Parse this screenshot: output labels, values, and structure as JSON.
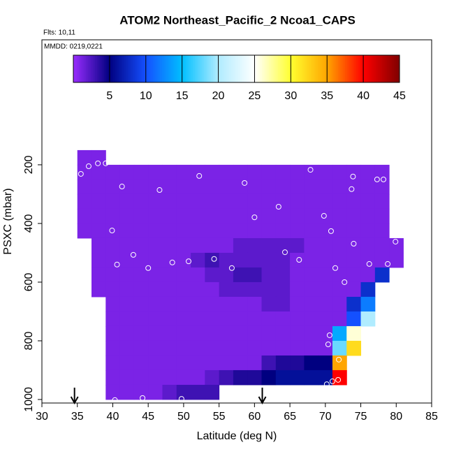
{
  "chart_data": {
    "type": "heatmap",
    "title": "ATOM2 Northeast_Pacific_2 Ncoa1_CAPS",
    "subtitle": "Flts: 10,11",
    "annotation": "MMDD: 0219,0221",
    "x_label": "Latitude (deg N)",
    "y_label": "PSXC (mbar)",
    "xlim": [
      30,
      85
    ],
    "xticks": [
      30,
      35,
      40,
      45,
      50,
      55,
      60,
      65,
      70,
      75,
      80,
      85
    ],
    "ylim": [
      1012,
      -226
    ],
    "yticks": [
      200,
      400,
      600,
      800,
      1000
    ],
    "x_edges": [
      35,
      37,
      39,
      41,
      43,
      45,
      47,
      49,
      51,
      53,
      55,
      57,
      59,
      61,
      63,
      65,
      67,
      69,
      71,
      73,
      75,
      77,
      79,
      81
    ],
    "y_edges": [
      150,
      200,
      250,
      300,
      350,
      400,
      450,
      500,
      550,
      600,
      650,
      700,
      750,
      800,
      850,
      900,
      950,
      1000
    ],
    "z": [
      [
        1,
        1,
        null,
        null,
        null,
        null,
        null,
        null,
        null,
        null,
        null,
        null,
        null,
        null,
        null,
        null,
        null,
        null,
        null,
        null,
        null,
        null,
        null
      ],
      [
        1,
        1,
        1,
        1,
        1,
        1,
        1,
        1,
        1,
        1,
        1,
        1,
        1,
        1,
        1,
        1,
        1,
        1,
        1,
        1,
        1,
        1,
        null
      ],
      [
        1,
        1,
        1,
        1,
        1,
        1,
        1,
        1,
        1,
        1,
        1,
        1,
        1,
        1,
        1,
        1,
        1,
        1,
        1,
        1,
        1,
        1,
        null
      ],
      [
        1,
        1,
        1,
        1,
        1,
        1,
        1,
        1,
        1,
        1,
        1,
        1,
        1,
        1,
        1,
        1,
        1,
        1,
        1,
        1,
        1,
        1,
        null
      ],
      [
        1,
        1,
        1,
        1,
        1,
        1,
        1,
        1,
        1,
        1,
        1,
        1,
        1,
        1,
        1,
        1,
        1,
        1,
        1,
        1,
        1,
        1,
        null
      ],
      [
        1,
        1,
        1,
        1,
        1,
        1,
        1,
        1,
        1,
        1,
        1,
        1,
        1,
        1,
        1,
        1,
        1,
        1,
        1,
        1,
        1,
        1,
        null
      ],
      [
        null,
        1,
        1,
        1,
        1,
        1,
        1,
        1,
        1,
        1,
        1,
        2,
        2,
        2,
        2,
        2,
        1,
        1,
        1,
        1,
        1,
        1,
        1
      ],
      [
        null,
        1,
        1,
        1,
        1,
        1,
        1,
        1,
        2,
        3,
        2,
        2,
        2,
        2,
        2,
        1,
        1,
        1,
        1,
        1,
        1,
        1,
        1
      ],
      [
        null,
        1,
        1,
        1,
        1,
        1,
        1,
        1,
        1,
        2,
        2,
        3,
        3,
        2,
        2,
        1,
        1,
        1,
        1,
        1,
        1,
        8,
        null
      ],
      [
        null,
        1,
        1,
        1,
        1,
        1,
        1,
        1,
        1,
        1,
        2,
        2,
        2,
        2,
        2,
        1,
        1,
        1,
        1,
        1,
        8,
        null,
        null
      ],
      [
        null,
        null,
        1,
        1,
        1,
        1,
        1,
        1,
        1,
        1,
        1,
        1,
        1,
        2,
        2,
        1,
        1,
        1,
        1,
        8,
        12,
        null,
        null
      ],
      [
        null,
        null,
        1,
        1,
        1,
        1,
        1,
        1,
        1,
        1,
        1,
        1,
        1,
        1,
        1,
        1,
        1,
        1,
        1,
        10,
        20,
        null,
        null
      ],
      [
        null,
        null,
        1,
        1,
        1,
        1,
        1,
        1,
        1,
        1,
        1,
        1,
        1,
        1,
        1,
        1,
        1,
        1,
        14,
        26,
        null,
        null,
        null
      ],
      [
        null,
        null,
        1,
        1,
        1,
        1,
        1,
        1,
        1,
        1,
        1,
        1,
        1,
        1,
        1,
        1,
        1,
        1,
        18,
        32,
        null,
        null,
        null
      ],
      [
        null,
        null,
        1,
        1,
        1,
        1,
        1,
        1,
        1,
        1,
        1,
        1,
        1,
        3,
        4,
        4,
        5,
        5,
        35,
        null,
        null,
        null,
        null
      ],
      [
        null,
        null,
        1,
        1,
        1,
        1,
        1,
        1,
        1,
        2,
        3,
        4,
        4,
        5,
        6,
        6,
        6,
        6,
        40,
        null,
        null,
        null,
        null
      ],
      [
        null,
        null,
        1,
        1,
        1,
        1,
        2,
        3,
        3,
        3,
        null,
        null,
        null,
        null,
        null,
        null,
        null,
        null,
        null,
        null,
        null,
        null,
        null
      ]
    ],
    "points": {
      "color": "#ffffff",
      "x": [
        35.5,
        36.6,
        37.9,
        39.0,
        41.3,
        46.6,
        52.2,
        58.6,
        67.9,
        73.9,
        73.7,
        77.3,
        78.2,
        63.4,
        60.0,
        69.8,
        39.9,
        70.8,
        79.9,
        42.9,
        40.6,
        45.0,
        48.4,
        50.7,
        54.3,
        56.8,
        64.3,
        66.3,
        71.4,
        74.0,
        76.2,
        78.8,
        72.7,
        70.6,
        70.4,
        71.9,
        70.2,
        71.0,
        71.8,
        40.3,
        44.2,
        49.7,
        55.8
      ],
      "y": [
        231,
        205,
        195,
        195,
        274,
        286,
        238,
        262,
        217,
        240,
        283,
        250,
        250,
        343,
        379,
        374,
        424,
        426,
        462,
        507,
        540,
        552,
        533,
        529,
        521,
        552,
        498,
        524,
        552,
        469,
        538,
        538,
        600,
        781,
        812,
        864,
        948,
        938,
        933,
        1002,
        995,
        998,
        990
      ]
    },
    "flight_markers_x": [
      34.6,
      61.1
    ],
    "clim": [
      0,
      45
    ],
    "cticks": [
      5,
      10,
      15,
      20,
      25,
      30,
      35,
      40,
      45
    ],
    "colormap": [
      {
        "value": 0,
        "color": "#9a2cff"
      },
      {
        "value": 5,
        "color": "#000080"
      },
      {
        "value": 10,
        "color": "#1450ff"
      },
      {
        "value": 15,
        "color": "#00bfff"
      },
      {
        "value": 20,
        "color": "#b0ecff"
      },
      {
        "value": 25,
        "color": "#ffffff"
      },
      {
        "value": 30,
        "color": "#ffff30"
      },
      {
        "value": 35,
        "color": "#ffa500"
      },
      {
        "value": 40,
        "color": "#ff0000"
      },
      {
        "value": 45,
        "color": "#800000"
      }
    ]
  }
}
